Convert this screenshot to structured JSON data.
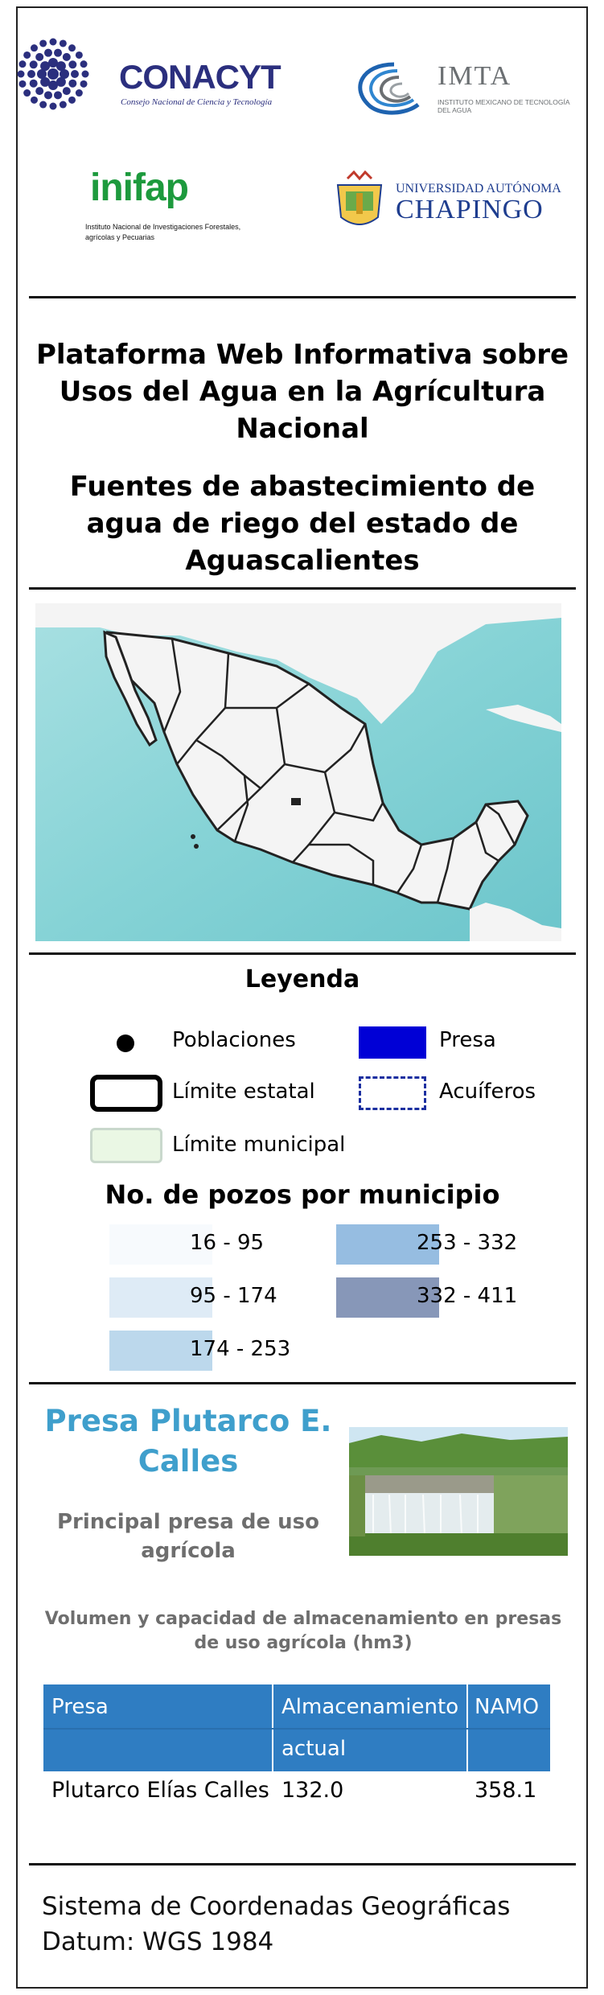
{
  "logos": {
    "conacyt": {
      "name": "CONACYT",
      "subtitle": "Consejo Nacional de Ciencia y Tecnología",
      "color": "#2b2f7e"
    },
    "imta": {
      "name": "IMTA",
      "subtitle": "INSTITUTO MEXICANO DE TECNOLOGÍA DEL AGUA",
      "color": "#6b6f72"
    },
    "inifap": {
      "name": "inifap",
      "subtitle": "Instituto Nacional de Investigaciones Forestales, agrícolas y Pecuarias",
      "color": "#1d9a3d"
    },
    "chapingo": {
      "top": "UNIVERSIDAD AUTÓNOMA",
      "name": "CHAPINGO",
      "color": "#1e3d8f"
    }
  },
  "titles": {
    "platform": "Plataforma Web Informativa sobre Usos del Agua en la Agrícultura Nacional",
    "map_title": "Fuentes de abastecimiento de agua de riego del estado de Aguascalientes"
  },
  "map": {
    "sea_color": "#86d3d6",
    "land_color": "#f4f4f4",
    "border_color": "#222222",
    "icon": "mexico-map"
  },
  "legend": {
    "title": "Leyenda",
    "items": {
      "poblaciones": "Poblaciones",
      "presa": "Presa",
      "limite_estatal": "Límite estatal",
      "acuiferos": "Acuíferos",
      "limite_municipal": "Límite municipal"
    },
    "colors": {
      "presa": "#0000d6",
      "acuiferos": "#1b2fa0",
      "limite_municipal": "#eaf7e4"
    }
  },
  "wells": {
    "title": "No. de pozos por municipio",
    "classes": [
      {
        "label": "16 - 95",
        "color": "#f7fafd"
      },
      {
        "label": "95 - 174",
        "color": "#deebf6"
      },
      {
        "label": "174 - 253",
        "color": "#bcd8ec"
      },
      {
        "label": "253 - 332",
        "color": "#96bde1"
      },
      {
        "label": "332 - 411",
        "color": "#8797b8"
      }
    ]
  },
  "presa": {
    "name": "Presa Plutarco E. Calles",
    "subtitle": "Principal presa de uso agrícola",
    "table_title": "Volumen y capacidad de almacenamiento en presas de uso agrícola (hm3)",
    "columns": [
      "Presa",
      "Almacenamiento actual",
      "NAMO"
    ],
    "rows": [
      [
        "Plutarco Elías Calles",
        "132.0",
        "358.1"
      ]
    ],
    "header_color": "#2f7dc2"
  },
  "footer": {
    "line1": "Sistema de Coordenadas Geográficas",
    "line2": "Datum: WGS 1984"
  }
}
